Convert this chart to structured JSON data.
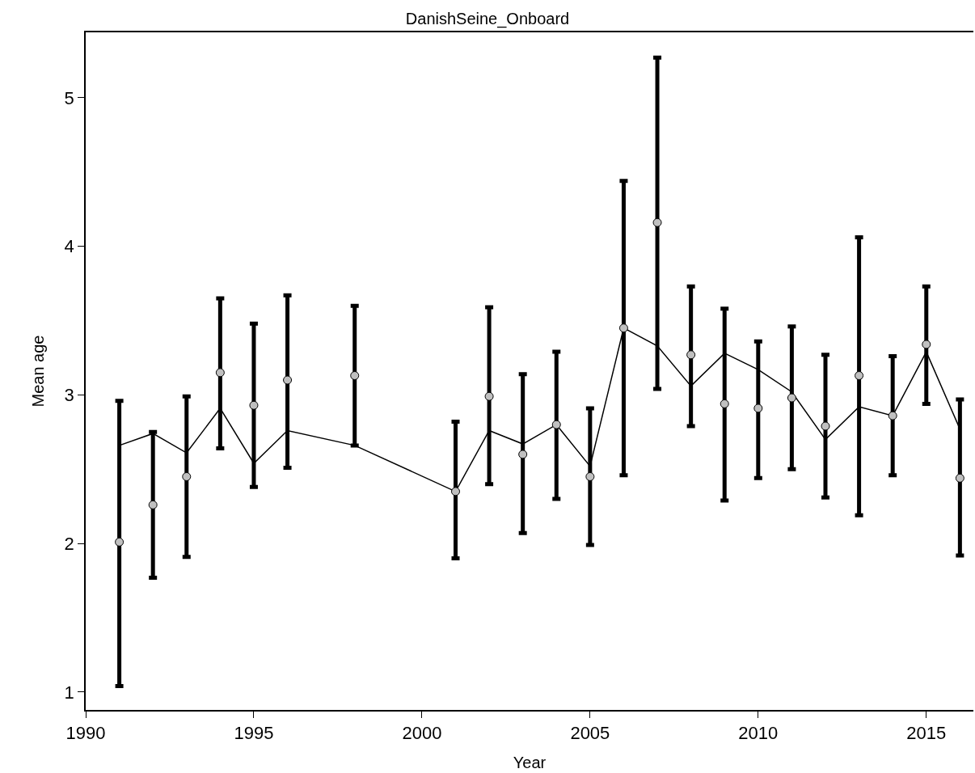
{
  "chart_data": {
    "type": "scatter",
    "title": "DanishSeine_Onboard",
    "xlabel": "Year",
    "ylabel": "Mean age",
    "x": [
      1991,
      1992,
      1993,
      1994,
      1995,
      1996,
      1998,
      2001,
      2002,
      2003,
      2004,
      2005,
      2006,
      2007,
      2008,
      2009,
      2010,
      2011,
      2012,
      2013,
      2014,
      2015,
      2016
    ],
    "series": [
      {
        "type": "line",
        "color": "#000000",
        "marker": "none",
        "line_style": "solid",
        "values": [
          2.66,
          2.74,
          2.61,
          2.91,
          2.54,
          2.76,
          2.66,
          2.35,
          2.76,
          2.67,
          2.8,
          2.52,
          3.45,
          3.33,
          3.06,
          3.28,
          3.17,
          3.02,
          2.7,
          2.92,
          2.86,
          3.29,
          2.77
        ]
      },
      {
        "color": "#c0c0c0",
        "marker": "circle",
        "values": [
          2.01,
          2.26,
          2.45,
          3.15,
          2.93,
          3.1,
          3.13,
          2.35,
          2.99,
          2.6,
          2.8,
          2.45,
          3.45,
          4.16,
          3.27,
          2.94,
          2.91,
          2.98,
          2.79,
          3.13,
          2.86,
          3.34,
          2.44
        ],
        "errors": [
          [
            1.04,
            2.96
          ],
          [
            1.77,
            2.75
          ],
          [
            1.91,
            2.99
          ],
          [
            2.64,
            3.65
          ],
          [
            2.38,
            3.48
          ],
          [
            2.51,
            3.67
          ],
          [
            2.66,
            3.6
          ],
          [
            1.9,
            2.82
          ],
          [
            2.4,
            3.59
          ],
          [
            2.07,
            3.14
          ],
          [
            2.3,
            3.29
          ],
          [
            1.99,
            2.91
          ],
          [
            2.46,
            4.44
          ],
          [
            3.04,
            5.27
          ],
          [
            2.79,
            3.73
          ],
          [
            2.29,
            3.58
          ],
          [
            2.44,
            3.36
          ],
          [
            2.5,
            3.46
          ],
          [
            2.31,
            3.27
          ],
          [
            2.19,
            4.06
          ],
          [
            2.46,
            3.26
          ],
          [
            2.94,
            3.73
          ],
          [
            1.92,
            2.97
          ]
        ]
      }
    ],
    "xlim": [
      1990,
      2016.4
    ],
    "ylim": [
      0.88,
      5.44
    ],
    "xticks": [
      1990,
      1995,
      2000,
      2005,
      2010,
      2015
    ],
    "yticks": [
      1,
      2,
      3,
      4,
      5
    ]
  }
}
